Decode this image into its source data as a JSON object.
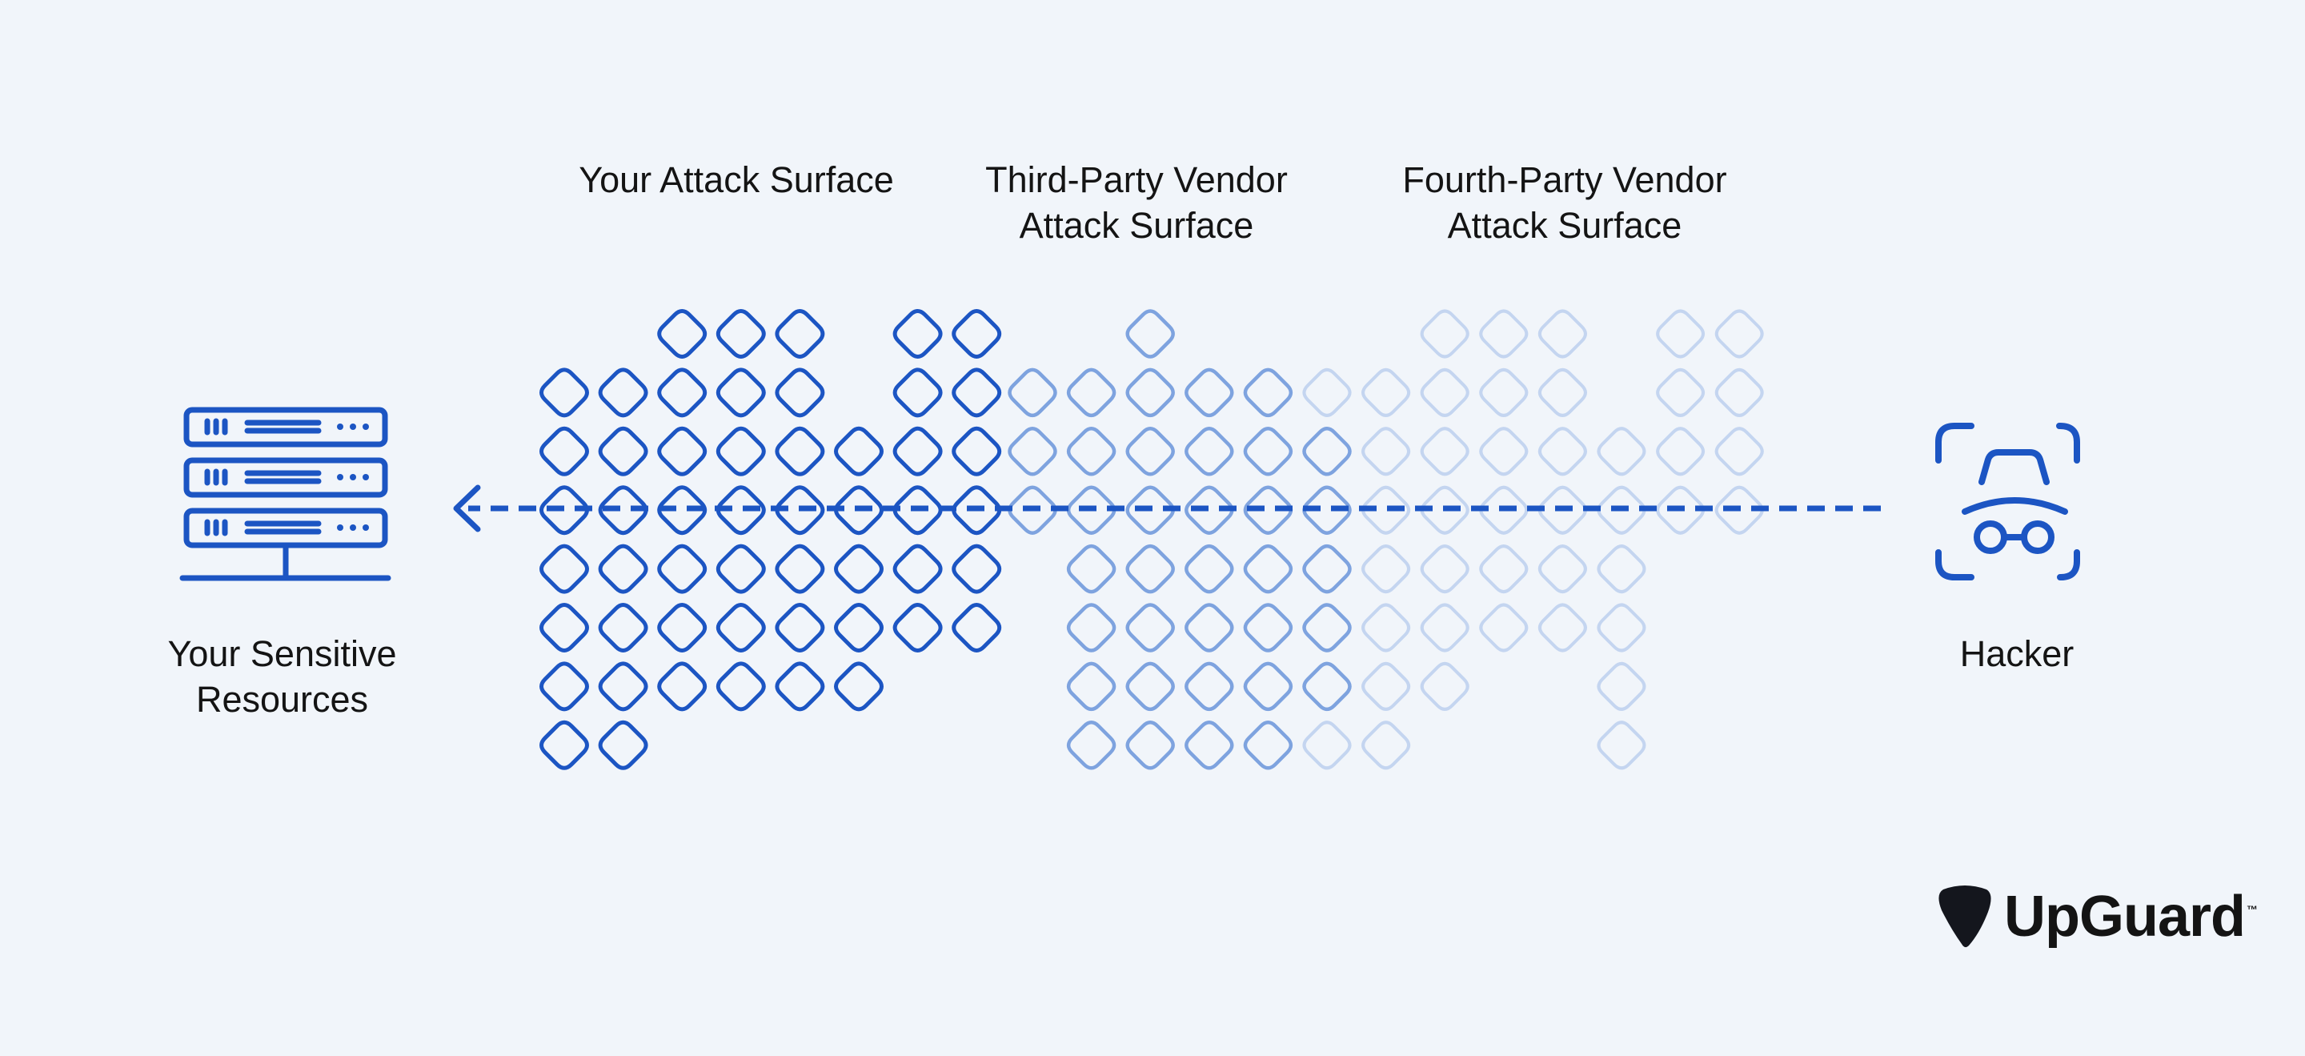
{
  "labels": {
    "your_attack_surface": "Your Attack Surface",
    "third_party_line1": "Third-Party Vendor",
    "third_party_line2": "Attack Surface",
    "fourth_party_line1": "Fourth-Party Vendor",
    "fourth_party_line2": "Attack Surface",
    "resources_line1": "Your Sensitive",
    "resources_line2": "Resources",
    "hacker": "Hacker"
  },
  "brand": {
    "name": "UpGuard",
    "trademark": "™"
  },
  "colors": {
    "background": "#f1f5fa",
    "primary_blue": "#1c55c3",
    "third_party_blue": "#7ea3df",
    "fourth_party_blue": "#c4d5f0",
    "text": "#141414"
  },
  "icons": {
    "resources": "server-rack-icon",
    "hacker": "hacker-face-scan-icon",
    "arrow": "dashed-arrow-left-icon",
    "logo": "upguard-shield-icon"
  }
}
